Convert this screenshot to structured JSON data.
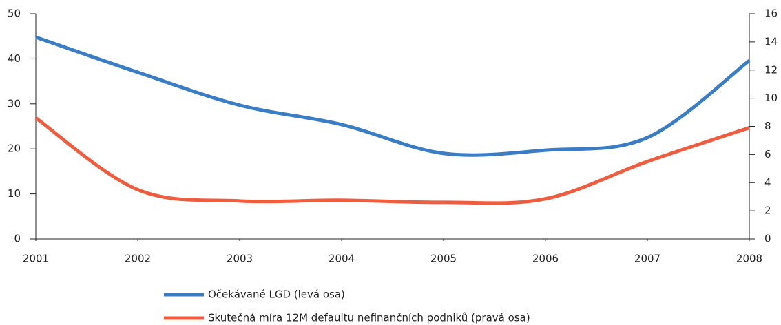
{
  "chart_data": {
    "type": "line",
    "x": [
      2001,
      2002,
      2003,
      2004,
      2005,
      2006,
      2007,
      2008
    ],
    "xlim": [
      2001,
      2008
    ],
    "xticks": [
      2001,
      2002,
      2003,
      2004,
      2005,
      2006,
      2007,
      2008
    ],
    "ylim": [
      0,
      50
    ],
    "yticks": [
      0,
      10,
      20,
      30,
      40,
      50
    ],
    "y2lim": [
      0,
      16
    ],
    "y2ticks": [
      0,
      2,
      4,
      6,
      8,
      10,
      12,
      14,
      16
    ],
    "grid": false,
    "series": [
      {
        "name": "Očekávané LGD (levá osa)",
        "color": "#3a7dc4",
        "values": [
          44.8,
          37,
          29.7,
          25.4,
          19,
          19.7,
          22.5,
          39.6
        ]
      },
      {
        "name": "Skutečná míra 12M defaultu nefinančních podniků (pravá osa)",
        "color": "#ee5d3f",
        "axis": "y2",
        "values": [
          8.6,
          3.5,
          2.7,
          2.75,
          2.6,
          2.85,
          5.5,
          7.9
        ]
      }
    ]
  }
}
